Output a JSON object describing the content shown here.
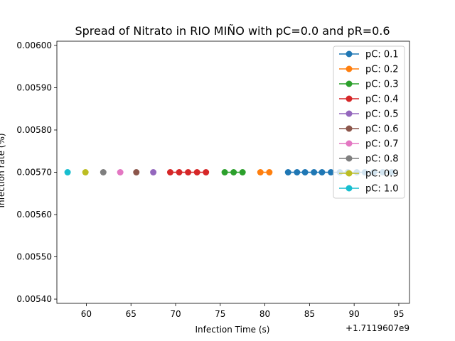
{
  "chart_data": {
    "type": "line",
    "title": "Spread of Nitrato in RIO MIÑO with pC=0.0 and pR=0.6",
    "xlabel": "Infection Time (s)",
    "ylabel": "Infection rate (%)",
    "x_offset_label": "+1.7119607e9",
    "xlim": [
      56.7,
      96.2
    ],
    "ylim": [
      0.00539,
      0.00601
    ],
    "xticks": [
      60,
      65,
      70,
      75,
      80,
      85,
      90,
      95
    ],
    "yticks": [
      0.0054,
      0.0055,
      0.0056,
      0.0057,
      0.0058,
      0.0059,
      0.006
    ],
    "ytick_labels": [
      "0.00540",
      "0.00550",
      "0.00560",
      "0.00570",
      "0.00580",
      "0.00590",
      "0.00600"
    ],
    "legend_position": "top-right",
    "grid": false,
    "series": [
      {
        "name": "pC: 0.1",
        "color": "#1f77b4",
        "x": [
          82.6,
          83.6,
          84.5,
          85.5,
          86.4,
          87.4,
          88.4,
          89.3,
          90.3,
          91.2,
          92.2,
          93.2,
          94.2
        ],
        "y": [
          0.0057,
          0.0057,
          0.0057,
          0.0057,
          0.0057,
          0.0057,
          0.0057,
          0.0057,
          0.0057,
          0.0057,
          0.0057,
          0.0057,
          0.0057
        ]
      },
      {
        "name": "pC: 0.2",
        "color": "#ff7f0e",
        "x": [
          79.5,
          80.5
        ],
        "y": [
          0.0057,
          0.0057
        ]
      },
      {
        "name": "pC: 0.3",
        "color": "#2ca02c",
        "x": [
          75.5,
          76.5,
          77.5
        ],
        "y": [
          0.0057,
          0.0057,
          0.0057
        ]
      },
      {
        "name": "pC: 0.4",
        "color": "#d62728",
        "x": [
          69.4,
          70.4,
          71.4,
          72.4,
          73.4
        ],
        "y": [
          0.0057,
          0.0057,
          0.0057,
          0.0057,
          0.0057
        ]
      },
      {
        "name": "pC: 0.5",
        "color": "#9467bd",
        "x": [
          67.5
        ],
        "y": [
          0.0057
        ]
      },
      {
        "name": "pC: 0.6",
        "color": "#8c564b",
        "x": [
          65.6
        ],
        "y": [
          0.0057
        ]
      },
      {
        "name": "pC: 0.7",
        "color": "#e377c2",
        "x": [
          63.8
        ],
        "y": [
          0.0057
        ]
      },
      {
        "name": "pC: 0.8",
        "color": "#7f7f7f",
        "x": [
          61.9
        ],
        "y": [
          0.0057
        ]
      },
      {
        "name": "pC: 0.9",
        "color": "#bcbd22",
        "x": [
          59.9
        ],
        "y": [
          0.0057
        ]
      },
      {
        "name": "pC: 1.0",
        "color": "#17becf",
        "x": [
          57.9
        ],
        "y": [
          0.0057
        ]
      }
    ]
  }
}
